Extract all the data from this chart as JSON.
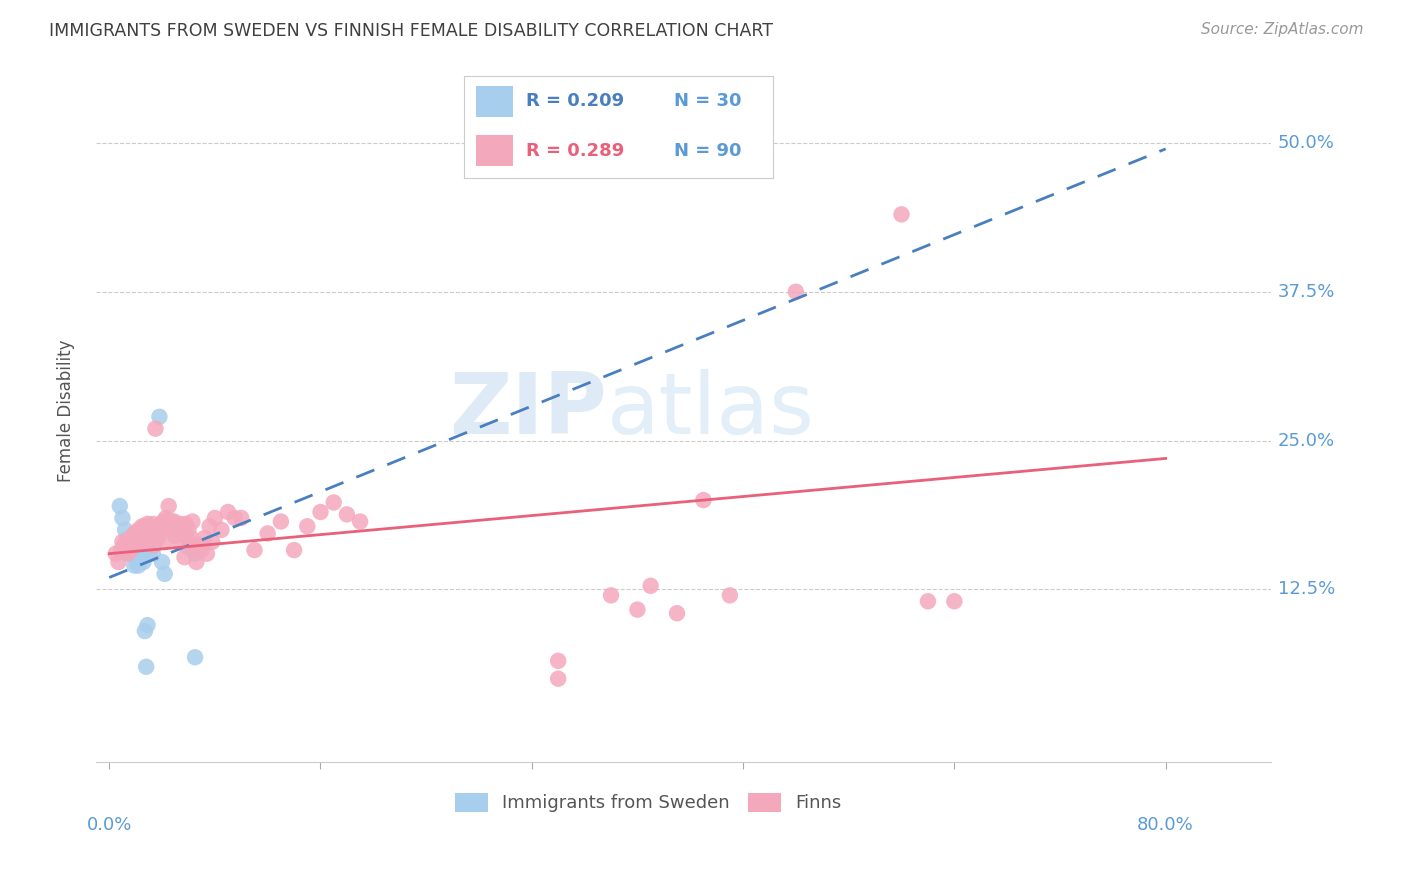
{
  "title": "IMMIGRANTS FROM SWEDEN VS FINNISH FEMALE DISABILITY CORRELATION CHART",
  "source": "Source: ZipAtlas.com",
  "ylabel": "Female Disability",
  "right_yticks": [
    "50.0%",
    "37.5%",
    "25.0%",
    "12.5%"
  ],
  "right_ytick_vals": [
    0.5,
    0.375,
    0.25,
    0.125
  ],
  "watermark_zip": "ZIP",
  "watermark_atlas": "atlas",
  "blue_color": "#A8CEED",
  "pink_color": "#F4A8BC",
  "blue_line_color": "#4A7FBF",
  "pink_line_color": "#E8607A",
  "axis_label_color": "#5B9BD5",
  "title_color": "#404040",
  "grid_color": "#CCCCCC",
  "legend_blue_r": "R = 0.209",
  "legend_blue_n": "N = 30",
  "legend_pink_r": "R = 0.289",
  "legend_pink_n": "N = 90",
  "blue_scatter": [
    [
      0.008,
      0.195
    ],
    [
      0.01,
      0.185
    ],
    [
      0.012,
      0.175
    ],
    [
      0.014,
      0.168
    ],
    [
      0.015,
      0.162
    ],
    [
      0.016,
      0.155
    ],
    [
      0.017,
      0.168
    ],
    [
      0.018,
      0.158
    ],
    [
      0.019,
      0.163
    ],
    [
      0.019,
      0.145
    ],
    [
      0.02,
      0.155
    ],
    [
      0.021,
      0.148
    ],
    [
      0.022,
      0.158
    ],
    [
      0.022,
      0.145
    ],
    [
      0.023,
      0.165
    ],
    [
      0.023,
      0.152
    ],
    [
      0.024,
      0.17
    ],
    [
      0.025,
      0.155
    ],
    [
      0.026,
      0.148
    ],
    [
      0.027,
      0.09
    ],
    [
      0.028,
      0.06
    ],
    [
      0.029,
      0.095
    ],
    [
      0.03,
      0.155
    ],
    [
      0.033,
      0.155
    ],
    [
      0.038,
      0.27
    ],
    [
      0.04,
      0.148
    ],
    [
      0.042,
      0.138
    ],
    [
      0.06,
      0.16
    ],
    [
      0.065,
      0.068
    ],
    [
      0.065,
      0.155
    ]
  ],
  "pink_scatter": [
    [
      0.005,
      0.155
    ],
    [
      0.007,
      0.148
    ],
    [
      0.009,
      0.158
    ],
    [
      0.01,
      0.165
    ],
    [
      0.011,
      0.162
    ],
    [
      0.012,
      0.16
    ],
    [
      0.013,
      0.165
    ],
    [
      0.014,
      0.155
    ],
    [
      0.015,
      0.162
    ],
    [
      0.016,
      0.158
    ],
    [
      0.017,
      0.168
    ],
    [
      0.018,
      0.162
    ],
    [
      0.019,
      0.172
    ],
    [
      0.02,
      0.165
    ],
    [
      0.021,
      0.17
    ],
    [
      0.022,
      0.175
    ],
    [
      0.023,
      0.172
    ],
    [
      0.024,
      0.165
    ],
    [
      0.025,
      0.178
    ],
    [
      0.026,
      0.175
    ],
    [
      0.027,
      0.178
    ],
    [
      0.028,
      0.172
    ],
    [
      0.029,
      0.18
    ],
    [
      0.03,
      0.165
    ],
    [
      0.031,
      0.175
    ],
    [
      0.032,
      0.168
    ],
    [
      0.033,
      0.18
    ],
    [
      0.034,
      0.162
    ],
    [
      0.035,
      0.26
    ],
    [
      0.036,
      0.175
    ],
    [
      0.037,
      0.168
    ],
    [
      0.038,
      0.178
    ],
    [
      0.039,
      0.18
    ],
    [
      0.04,
      0.175
    ],
    [
      0.041,
      0.182
    ],
    [
      0.042,
      0.165
    ],
    [
      0.043,
      0.185
    ],
    [
      0.044,
      0.178
    ],
    [
      0.045,
      0.195
    ],
    [
      0.046,
      0.18
    ],
    [
      0.047,
      0.182
    ],
    [
      0.048,
      0.175
    ],
    [
      0.049,
      0.182
    ],
    [
      0.05,
      0.17
    ],
    [
      0.052,
      0.175
    ],
    [
      0.053,
      0.165
    ],
    [
      0.054,
      0.18
    ],
    [
      0.055,
      0.175
    ],
    [
      0.056,
      0.175
    ],
    [
      0.057,
      0.152
    ],
    [
      0.058,
      0.18
    ],
    [
      0.059,
      0.168
    ],
    [
      0.06,
      0.175
    ],
    [
      0.062,
      0.168
    ],
    [
      0.063,
      0.182
    ],
    [
      0.064,
      0.16
    ],
    [
      0.065,
      0.162
    ],
    [
      0.066,
      0.148
    ],
    [
      0.068,
      0.162
    ],
    [
      0.07,
      0.158
    ],
    [
      0.072,
      0.168
    ],
    [
      0.074,
      0.155
    ],
    [
      0.076,
      0.178
    ],
    [
      0.078,
      0.165
    ],
    [
      0.08,
      0.185
    ],
    [
      0.085,
      0.175
    ],
    [
      0.09,
      0.19
    ],
    [
      0.095,
      0.185
    ],
    [
      0.1,
      0.185
    ],
    [
      0.11,
      0.158
    ],
    [
      0.12,
      0.172
    ],
    [
      0.13,
      0.182
    ],
    [
      0.14,
      0.158
    ],
    [
      0.15,
      0.178
    ],
    [
      0.16,
      0.19
    ],
    [
      0.17,
      0.198
    ],
    [
      0.18,
      0.188
    ],
    [
      0.19,
      0.182
    ],
    [
      0.34,
      0.065
    ],
    [
      0.34,
      0.05
    ],
    [
      0.38,
      0.12
    ],
    [
      0.4,
      0.108
    ],
    [
      0.41,
      0.128
    ],
    [
      0.43,
      0.105
    ],
    [
      0.45,
      0.2
    ],
    [
      0.47,
      0.12
    ],
    [
      0.52,
      0.375
    ],
    [
      0.6,
      0.44
    ],
    [
      0.62,
      0.115
    ],
    [
      0.64,
      0.115
    ]
  ],
  "xmin": -0.01,
  "xmax": 0.88,
  "ymin": -0.02,
  "ymax": 0.57,
  "blue_line_x": [
    0.0,
    0.8
  ],
  "blue_line_y": [
    0.135,
    0.495
  ],
  "pink_line_x": [
    0.0,
    0.8
  ],
  "pink_line_y": [
    0.155,
    0.235
  ]
}
